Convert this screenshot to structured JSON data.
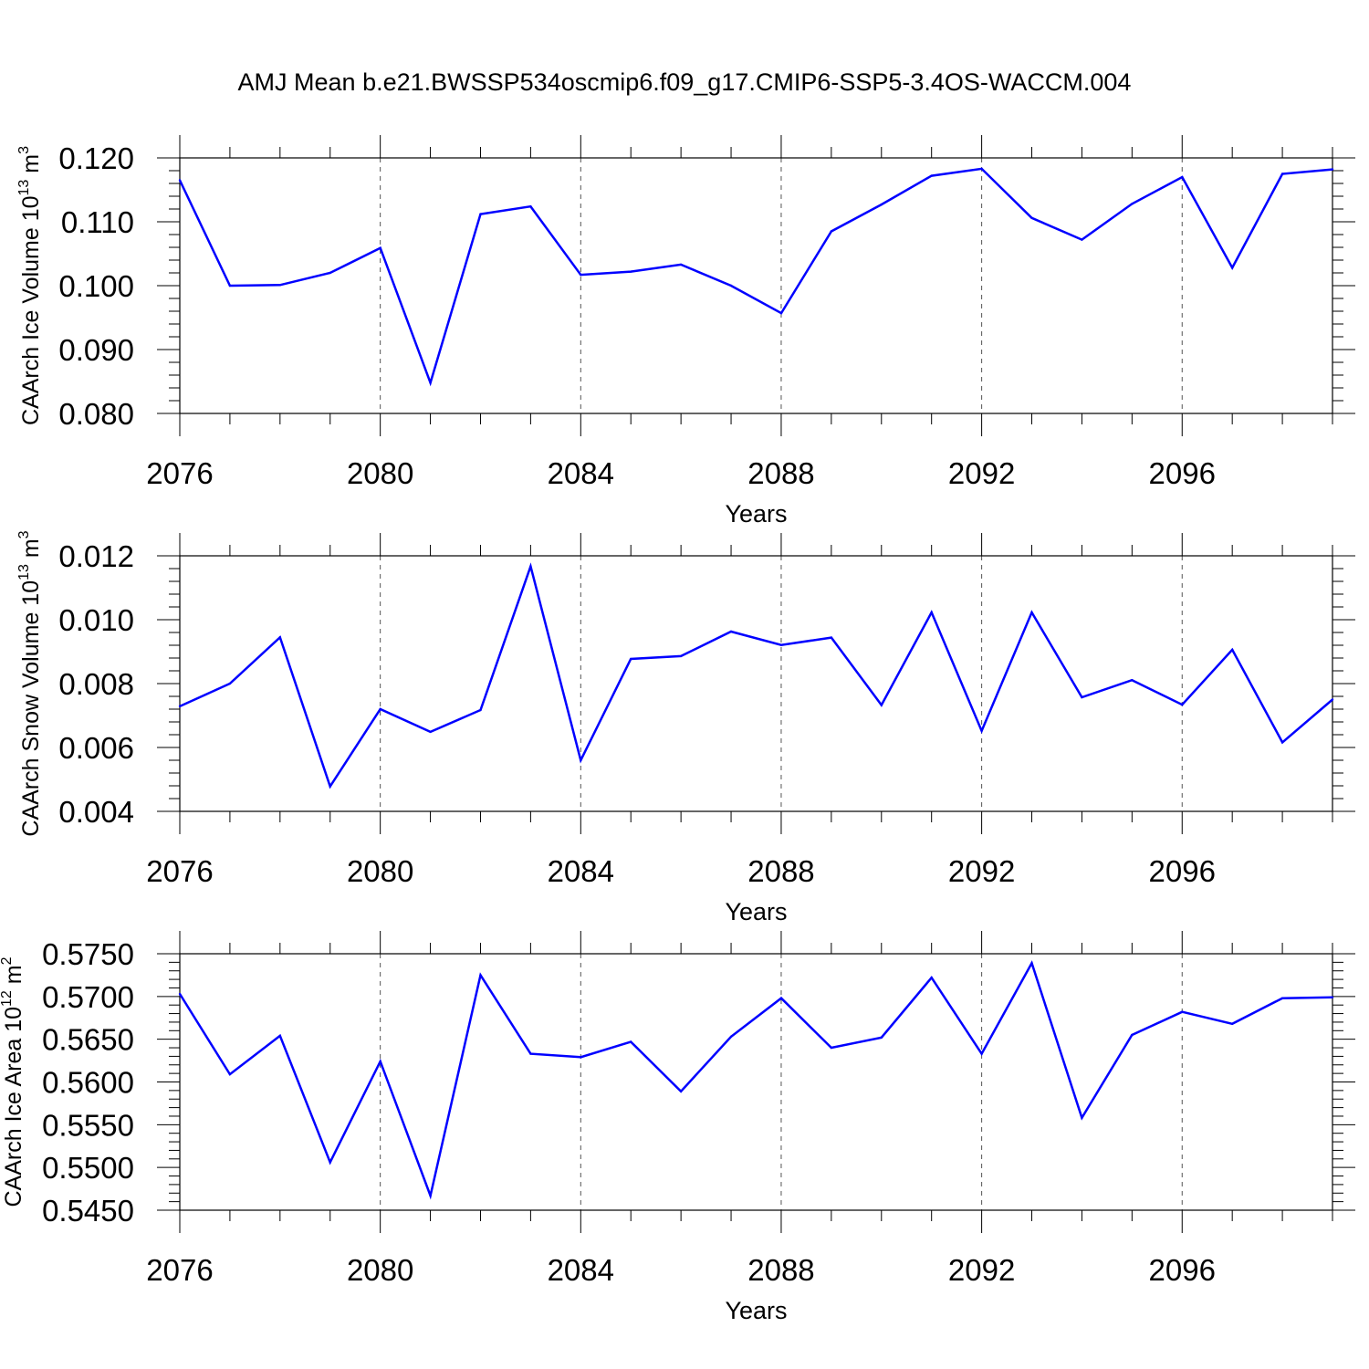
{
  "figure": {
    "title": "AMJ Mean b.e21.BWSSP534oscmip6.f09_g17.CMIP6-SSP5-3.4OS-WACCM.004"
  },
  "colors": {
    "series": "#0000ff",
    "axis": "#000000",
    "grid": "#555555"
  },
  "chart_data": [
    {
      "type": "line",
      "ylabel_base": "CAArch Ice Volume 10",
      "ylabel_exp": "13",
      "ylabel_unit": " m",
      "ylabel_unit_exp": "3",
      "xlabel": "Years",
      "xlim": [
        2076,
        2099
      ],
      "ylim": [
        0.08,
        0.12
      ],
      "xticks": [
        2076,
        2080,
        2084,
        2088,
        2092,
        2096
      ],
      "xtick_labels": [
        "2076",
        "2080",
        "2084",
        "2088",
        "2092",
        "2096"
      ],
      "yticks": [
        0.08,
        0.09,
        0.1,
        0.11,
        0.12
      ],
      "ytick_labels": [
        "0.080",
        "0.090",
        "0.100",
        "0.110",
        "0.120"
      ],
      "grid": "vertical dashed at major x ticks",
      "x": [
        2076,
        2077,
        2078,
        2079,
        2080,
        2081,
        2082,
        2083,
        2084,
        2085,
        2086,
        2087,
        2088,
        2089,
        2090,
        2091,
        2092,
        2093,
        2094,
        2095,
        2096,
        2097,
        2098,
        2099
      ],
      "y": [
        0.1165,
        0.1,
        0.1001,
        0.102,
        0.1059,
        0.0848,
        0.1112,
        0.1124,
        0.1017,
        0.1022,
        0.1033,
        0.1,
        0.0957,
        0.1085,
        0.1127,
        0.1172,
        0.1183,
        0.1106,
        0.1072,
        0.1128,
        0.117,
        0.1028,
        0.1175,
        0.1182
      ]
    },
    {
      "type": "line",
      "ylabel_base": "CAArch Snow Volume 10",
      "ylabel_exp": "13",
      "ylabel_unit": " m",
      "ylabel_unit_exp": "3",
      "xlabel": "Years",
      "xlim": [
        2076,
        2099
      ],
      "ylim": [
        0.004,
        0.012
      ],
      "xticks": [
        2076,
        2080,
        2084,
        2088,
        2092,
        2096
      ],
      "xtick_labels": [
        "2076",
        "2080",
        "2084",
        "2088",
        "2092",
        "2096"
      ],
      "yticks": [
        0.004,
        0.006,
        0.008,
        0.01,
        0.012
      ],
      "ytick_labels": [
        "0.004",
        "0.006",
        "0.008",
        "0.010",
        "0.012"
      ],
      "grid": "vertical dashed at major x ticks",
      "x": [
        2076,
        2077,
        2078,
        2079,
        2080,
        2081,
        2082,
        2083,
        2084,
        2085,
        2086,
        2087,
        2088,
        2089,
        2090,
        2091,
        2092,
        2093,
        2094,
        2095,
        2096,
        2097,
        2098,
        2099
      ],
      "y": [
        0.00729,
        0.008,
        0.00945,
        0.00478,
        0.0072,
        0.00649,
        0.00717,
        0.01167,
        0.0056,
        0.00877,
        0.00886,
        0.00963,
        0.00921,
        0.00944,
        0.00733,
        0.01023,
        0.00652,
        0.01023,
        0.00757,
        0.00811,
        0.00734,
        0.00906,
        0.00616,
        0.0075
      ]
    },
    {
      "type": "line",
      "ylabel_base": "CAArch Ice Area 10",
      "ylabel_exp": "12",
      "ylabel_unit": " m",
      "ylabel_unit_exp": "2",
      "xlabel": "Years",
      "xlim": [
        2076,
        2099
      ],
      "ylim": [
        0.545,
        0.575
      ],
      "xticks": [
        2076,
        2080,
        2084,
        2088,
        2092,
        2096
      ],
      "xtick_labels": [
        "2076",
        "2080",
        "2084",
        "2088",
        "2092",
        "2096"
      ],
      "yticks": [
        0.545,
        0.55,
        0.555,
        0.56,
        0.565,
        0.57,
        0.575
      ],
      "ytick_labels": [
        "0.5450",
        "0.5500",
        "0.5550",
        "0.5600",
        "0.5650",
        "0.5700",
        "0.5750"
      ],
      "grid": "vertical dashed at major x ticks",
      "x": [
        2076,
        2077,
        2078,
        2079,
        2080,
        2081,
        2082,
        2083,
        2084,
        2085,
        2086,
        2087,
        2088,
        2089,
        2090,
        2091,
        2092,
        2093,
        2094,
        2095,
        2096,
        2097,
        2098,
        2099
      ],
      "y": [
        0.5703,
        0.5609,
        0.5654,
        0.5506,
        0.5624,
        0.5467,
        0.5725,
        0.5633,
        0.5629,
        0.5647,
        0.5589,
        0.5653,
        0.5698,
        0.564,
        0.5652,
        0.5722,
        0.5633,
        0.5739,
        0.5558,
        0.5655,
        0.5682,
        0.5668,
        0.5698,
        0.5699
      ]
    }
  ]
}
